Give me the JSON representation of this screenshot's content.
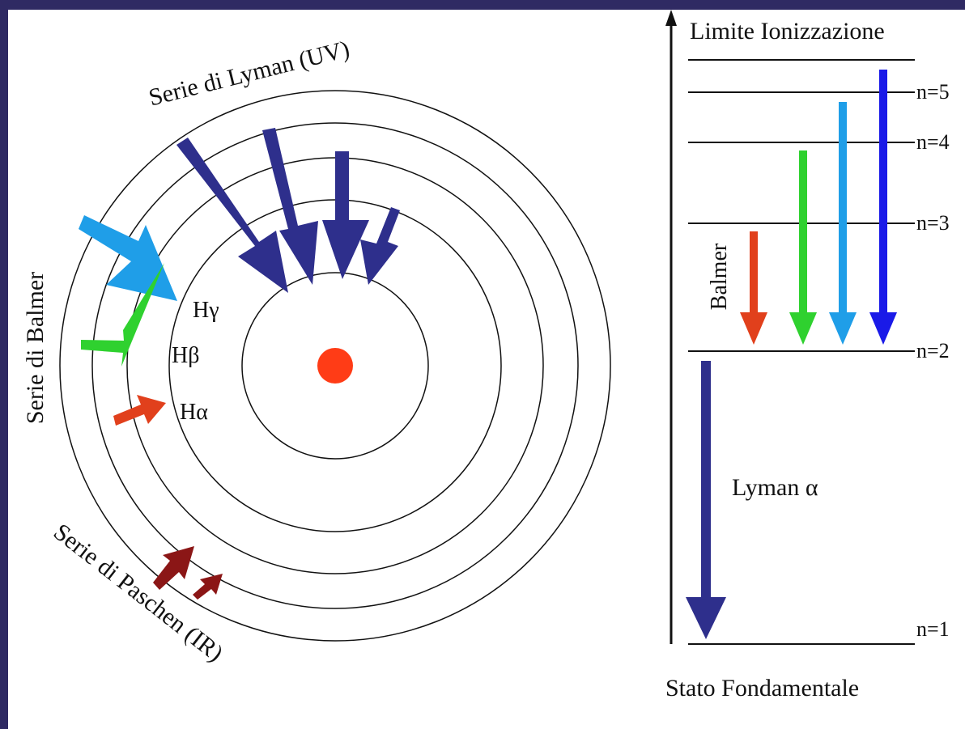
{
  "diagram": {
    "left": {
      "lyman_series_label": "Serie di Lyman (UV)",
      "balmer_series_label": "Serie di Balmer",
      "paschen_series_label": "Serie di Paschen (IR)",
      "h_gamma_label": "Hγ",
      "h_beta_label": "Hβ",
      "h_alpha_label": "Hα"
    },
    "right": {
      "ionization_limit_label": "Limite Ionizzazione",
      "ground_state_label": "Stato Fondamentale",
      "balmer_label": "Balmer",
      "lyman_alpha_label": "Lyman α",
      "levels": [
        "n=5",
        "n=4",
        "n=3",
        "n=2",
        "n=1"
      ]
    },
    "colors": {
      "background_frame": "#2f2a63",
      "lyman": "#2e2f8c",
      "h_gamma": "#1f9ee8",
      "h_beta": "#2fd12f",
      "h_alpha": "#e1401c",
      "paschen": "#8b1616",
      "nucleus": "#ff3c16",
      "balmer_blue": "#1a1ae8"
    }
  }
}
